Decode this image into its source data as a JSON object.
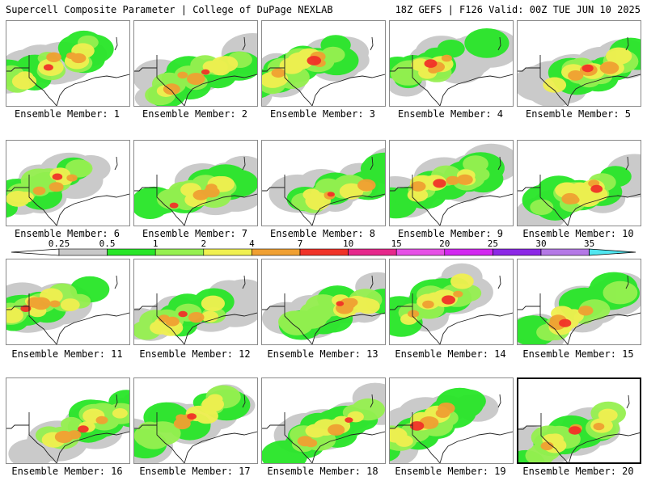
{
  "header": {
    "title": "Supercell Composite Parameter | College of DuPage NEXLAB",
    "run_info": "18Z GEFS | F126 Valid: 00Z TUE JUN 10 2025"
  },
  "panels": [
    {
      "label": "Ensemble Member: 1"
    },
    {
      "label": "Ensemble Member: 2"
    },
    {
      "label": "Ensemble Member: 3"
    },
    {
      "label": "Ensemble Member: 4"
    },
    {
      "label": "Ensemble Member: 5"
    },
    {
      "label": "Ensemble Member: 6"
    },
    {
      "label": "Ensemble Member: 7"
    },
    {
      "label": "Ensemble Member: 8"
    },
    {
      "label": "Ensemble Member: 9"
    },
    {
      "label": "Ensemble Member: 10"
    },
    {
      "label": "Ensemble Member: 11"
    },
    {
      "label": "Ensemble Member: 12"
    },
    {
      "label": "Ensemble Member: 13"
    },
    {
      "label": "Ensemble Member: 14"
    },
    {
      "label": "Ensemble Member: 15"
    },
    {
      "label": "Ensemble Member: 16"
    },
    {
      "label": "Ensemble Member: 17"
    },
    {
      "label": "Ensemble Member: 18"
    },
    {
      "label": "Ensemble Member: 19"
    },
    {
      "label": "Ensemble Member: 20",
      "selected": true
    }
  ],
  "colorbar": {
    "levels": [
      "0.25",
      "0.5",
      "1",
      "2",
      "4",
      "7",
      "10",
      "15",
      "20",
      "25",
      "30",
      "35"
    ],
    "colors": [
      "#c8c8c8",
      "#28e628",
      "#96f050",
      "#f0f050",
      "#f0a032",
      "#f03228",
      "#e6288c",
      "#e650e6",
      "#d228f0",
      "#8c28e6",
      "#b478e6",
      "#50e6f0"
    ]
  }
}
